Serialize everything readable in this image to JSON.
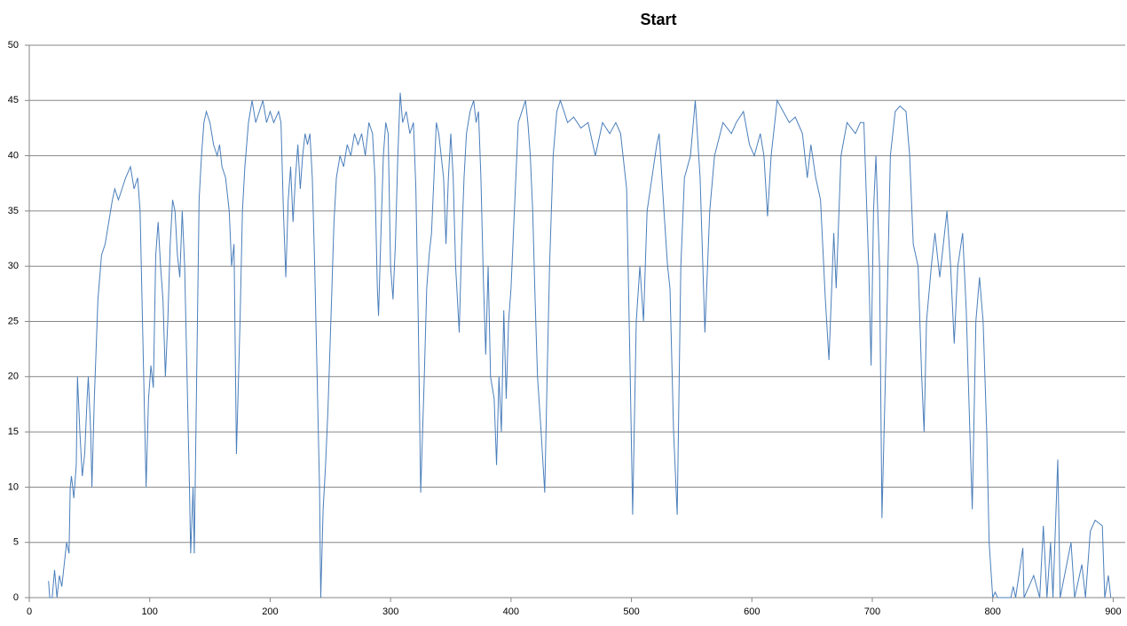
{
  "chart_data": {
    "type": "line",
    "title": "Start",
    "x": [
      16,
      17,
      19,
      21,
      23,
      25,
      27,
      29,
      31,
      33,
      34,
      35,
      37,
      39,
      40,
      42,
      44,
      46,
      48,
      49,
      51,
      52,
      54,
      57,
      60,
      63,
      66,
      69,
      71,
      74,
      77,
      80,
      84,
      87,
      90,
      92,
      94,
      96,
      97,
      99,
      101,
      103,
      105,
      107,
      109,
      111,
      113,
      115,
      117,
      119,
      121,
      123,
      125,
      127,
      129,
      131,
      133,
      134,
      136,
      137,
      139,
      141,
      143,
      145,
      147,
      150,
      153,
      156,
      158,
      160,
      163,
      166,
      168,
      170,
      172,
      175,
      177,
      179,
      182,
      185,
      188,
      191,
      194,
      197,
      200,
      203,
      207,
      209,
      211,
      213,
      215,
      217,
      219,
      221,
      223,
      225,
      227,
      229,
      231,
      233,
      235,
      237,
      239,
      241,
      242,
      244,
      246,
      248,
      251,
      253,
      255,
      258,
      261,
      264,
      267,
      270,
      273,
      276,
      279,
      282,
      285,
      287,
      289,
      290,
      292,
      294,
      296,
      298,
      300,
      302,
      304,
      306,
      308,
      310,
      313,
      316,
      319,
      321,
      323,
      325,
      328,
      330,
      332,
      334,
      336,
      338,
      340,
      342,
      344,
      346,
      348,
      350,
      352,
      354,
      357,
      359,
      361,
      363,
      366,
      369,
      371,
      373,
      375,
      377,
      379,
      381,
      383,
      386,
      388,
      390,
      392,
      394,
      396,
      398,
      400,
      402,
      404,
      406,
      409,
      412,
      414,
      416,
      418,
      420,
      422,
      425,
      428,
      430,
      432,
      435,
      438,
      441,
      447,
      452,
      458,
      464,
      470,
      476,
      482,
      487,
      491,
      496,
      499,
      501,
      504,
      507,
      510,
      513,
      517,
      521,
      523,
      527,
      530,
      532,
      535,
      538,
      541,
      544,
      549,
      553,
      557,
      561,
      565,
      569,
      576,
      583,
      587,
      593,
      598,
      602,
      607,
      610,
      613,
      616,
      621,
      626,
      631,
      636,
      642,
      646,
      649,
      653,
      657,
      661,
      664,
      668,
      670,
      674,
      679,
      686,
      690,
      693,
      697,
      699,
      701,
      703,
      706,
      708,
      712,
      715,
      719,
      723,
      728,
      731,
      734,
      738,
      741,
      743,
      745,
      749,
      752,
      756,
      762,
      765,
      768,
      771,
      775,
      778,
      781,
      783,
      786,
      789,
      792,
      795,
      797,
      800,
      802,
      804,
      815,
      817,
      819,
      825,
      826,
      834,
      839,
      842,
      845,
      848,
      850,
      854,
      856,
      865,
      868,
      874,
      877,
      881,
      885,
      891,
      893,
      896,
      898
    ],
    "series": [
      {
        "color": "#4a7ebb",
        "values": [
          1.5,
          0,
          0,
          2.5,
          0,
          2,
          1,
          3,
          5,
          4,
          10,
          11,
          9,
          12,
          20,
          15,
          11,
          13,
          18,
          20,
          15,
          10,
          18,
          27,
          31,
          32,
          34,
          36,
          37,
          36,
          37,
          38,
          39,
          37,
          38,
          35,
          25,
          15,
          10,
          18,
          21,
          19,
          31,
          34,
          30,
          27,
          20,
          25,
          32,
          36,
          35,
          31,
          29,
          35,
          30,
          20,
          10,
          4,
          10,
          4,
          20,
          36,
          40,
          43,
          44,
          43,
          41,
          40,
          41,
          39,
          38,
          35,
          30,
          32,
          13,
          25,
          35,
          39,
          43,
          45,
          43,
          44,
          45,
          43,
          44,
          43,
          44,
          43,
          35,
          29,
          36,
          39,
          34,
          38,
          41,
          37,
          40,
          42,
          41,
          42,
          38,
          30,
          20,
          10,
          0,
          8,
          12,
          17,
          27,
          34,
          38,
          40,
          39,
          41,
          40,
          42,
          41,
          42,
          40,
          43,
          42,
          38,
          28,
          25.5,
          33,
          40,
          43,
          42,
          30,
          27,
          32,
          40,
          45.7,
          43,
          44,
          42,
          43,
          37,
          25,
          9.5,
          20,
          28,
          31,
          33,
          38,
          43,
          42,
          40,
          38,
          32,
          38,
          42,
          38,
          30,
          24,
          32,
          38,
          42,
          44,
          45,
          43,
          44,
          38,
          29,
          22,
          30,
          20,
          18,
          12,
          20,
          15,
          26,
          18,
          25,
          28,
          33,
          38,
          43,
          44,
          45,
          43,
          40,
          35,
          27,
          20,
          15,
          9.5,
          20,
          30,
          40,
          44,
          45,
          43,
          43.5,
          42.5,
          43,
          40,
          43,
          42,
          43,
          42,
          37,
          20,
          7.5,
          25,
          30,
          25,
          35,
          38,
          41,
          42,
          35,
          30,
          28,
          15,
          7.5,
          30,
          38,
          40,
          45,
          38,
          24,
          35,
          40,
          43,
          42,
          43,
          44,
          41,
          40,
          42,
          40,
          34.5,
          40,
          45,
          44,
          43,
          43.5,
          42,
          38,
          41,
          38,
          36,
          27,
          21.5,
          33,
          28,
          40,
          43,
          42,
          43,
          43,
          30,
          21,
          35,
          40,
          30,
          7.2,
          25,
          40,
          44,
          44.5,
          44,
          40,
          32,
          30,
          20,
          15,
          25,
          30,
          33,
          29,
          35,
          30,
          23,
          30,
          33,
          26,
          15,
          8,
          25,
          29,
          25,
          15,
          5,
          0,
          0.5,
          0,
          0,
          1,
          0,
          4.5,
          0,
          2,
          0,
          6.5,
          0,
          5,
          0,
          12.5,
          0,
          5,
          0,
          3,
          0,
          6,
          7,
          6.5,
          0,
          2,
          0
        ]
      }
    ],
    "xlim": [
      0,
      910
    ],
    "ylim": [
      0,
      50
    ],
    "xticks": [
      0,
      100,
      200,
      300,
      400,
      500,
      600,
      700,
      800,
      900
    ],
    "yticks": [
      0,
      5,
      10,
      15,
      20,
      25,
      30,
      35,
      40,
      45,
      50
    ],
    "grid": true
  }
}
